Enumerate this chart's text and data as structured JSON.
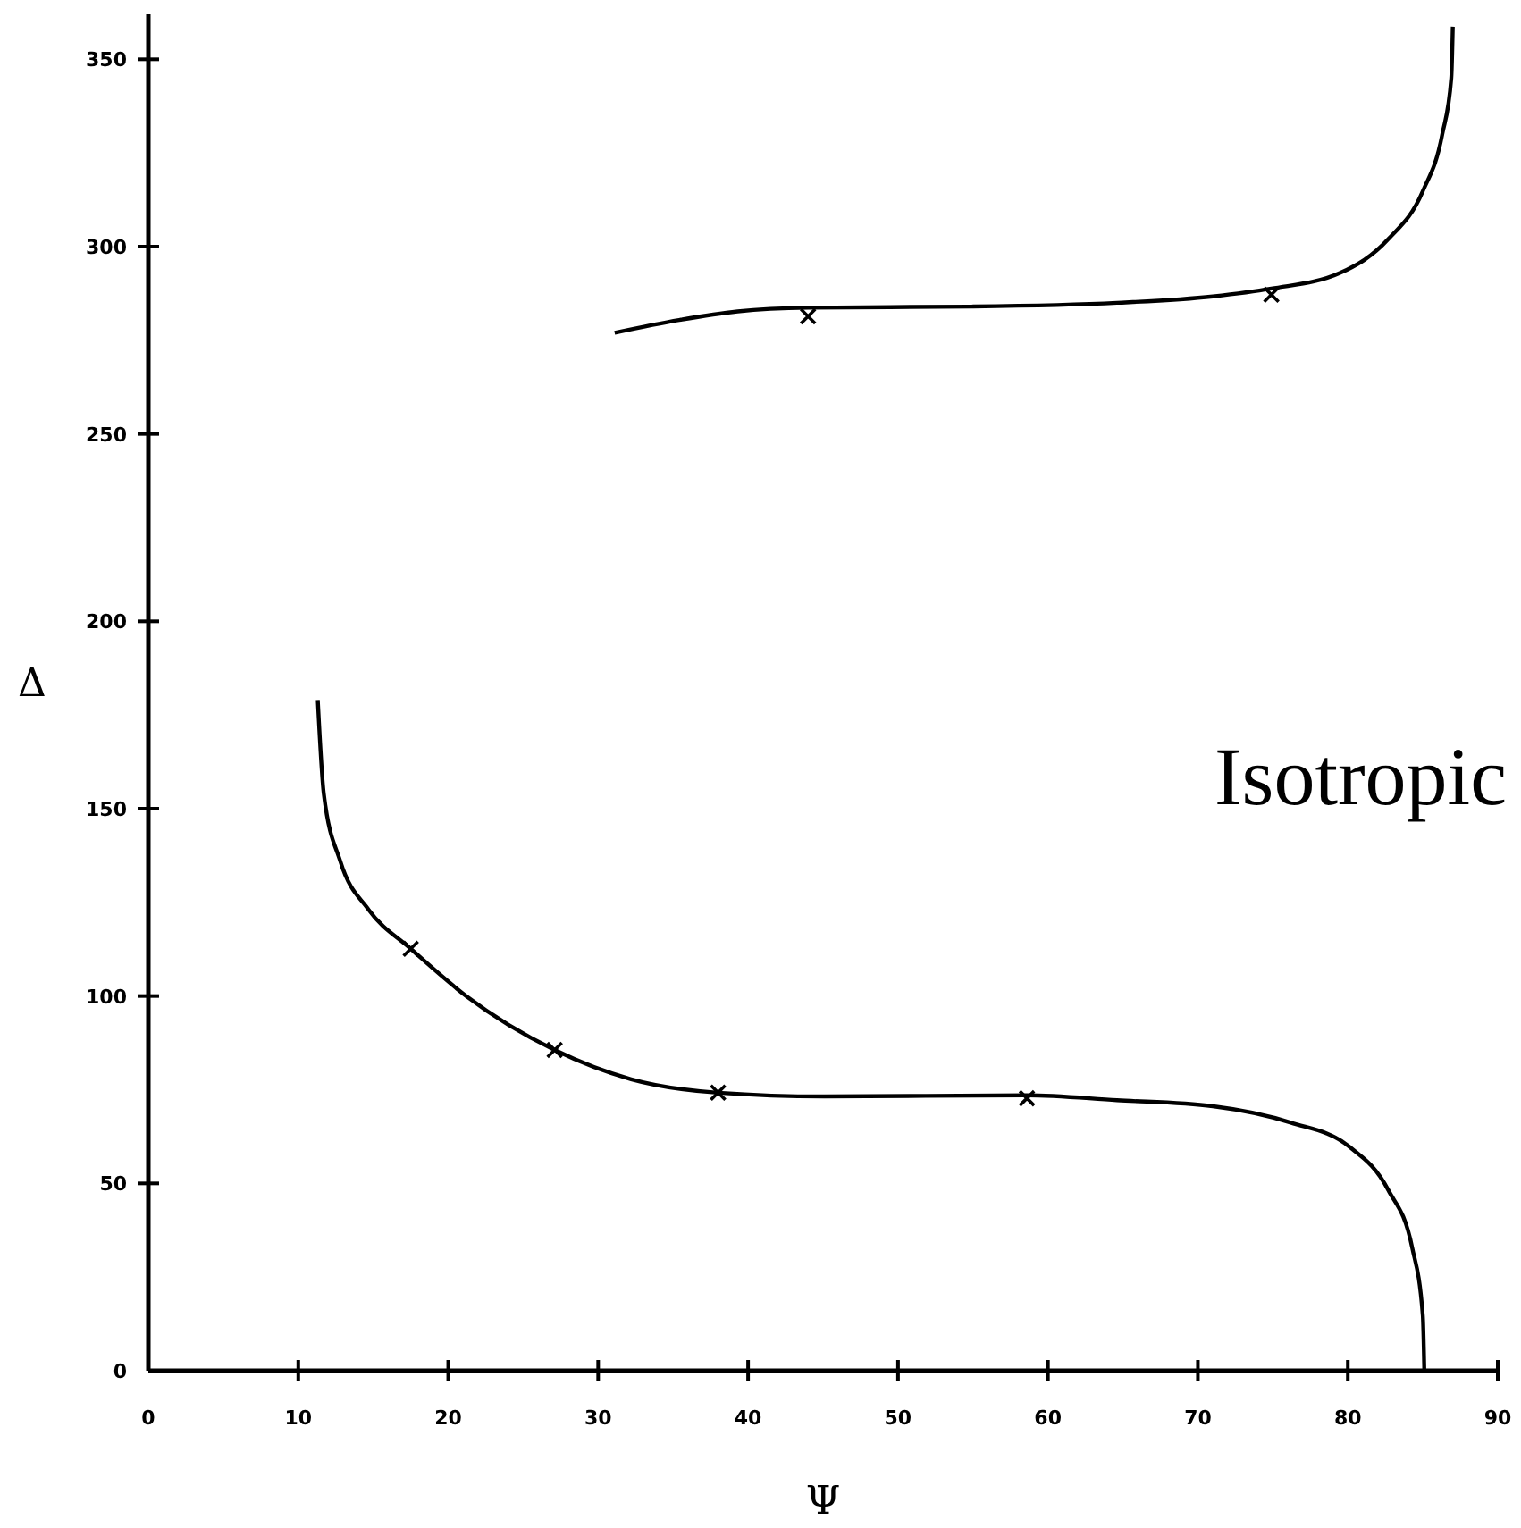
{
  "chart_data": {
    "type": "line",
    "xlabel": "Ψ",
    "ylabel": "Δ",
    "annotations": [
      "Isotropic"
    ],
    "xlim": [
      0,
      90
    ],
    "ylim": [
      0,
      362
    ],
    "xticks": [
      0,
      10,
      20,
      30,
      40,
      50,
      60,
      70,
      80,
      90
    ],
    "yticks": [
      0,
      50,
      100,
      150,
      200,
      250,
      300,
      350
    ],
    "grid": false,
    "series": [
      {
        "type": "line",
        "color": "#000000",
        "marker": "none",
        "x": [
          11.3,
          11.7,
          12.8,
          14.7,
          17.5,
          21.2,
          27.1,
          32.2,
          38,
          45.1,
          58.6,
          64.6,
          71,
          76.2,
          80.1,
          82.7,
          84.3,
          85,
          85.1
        ],
        "values": [
          179,
          154,
          136,
          123,
          112.6,
          100,
          85.6,
          77.8,
          74.2,
          73.2,
          73.5,
          72.2,
          70.6,
          66.2,
          59.8,
          48.2,
          32.7,
          14.7,
          0
        ]
      },
      {
        "type": "line",
        "color": "#000000",
        "marker": "none",
        "x": [
          31.1,
          35.4,
          39.3,
          44,
          54.9,
          64.6,
          71,
          74.9,
          79.5,
          82.7,
          85,
          86.3,
          86.9,
          87
        ],
        "values": [
          277,
          280.4,
          282.7,
          283.7,
          284,
          285,
          286.7,
          288.8,
          293,
          302,
          314.8,
          330,
          345,
          358.7
        ]
      },
      {
        "type": "scatter",
        "color": "#000000",
        "marker": "cross",
        "x": [
          17.5,
          27.1,
          38,
          58.6,
          44,
          74.9
        ],
        "values": [
          112.6,
          85.6,
          74.2,
          72.7,
          281.4,
          287.2
        ]
      }
    ]
  }
}
